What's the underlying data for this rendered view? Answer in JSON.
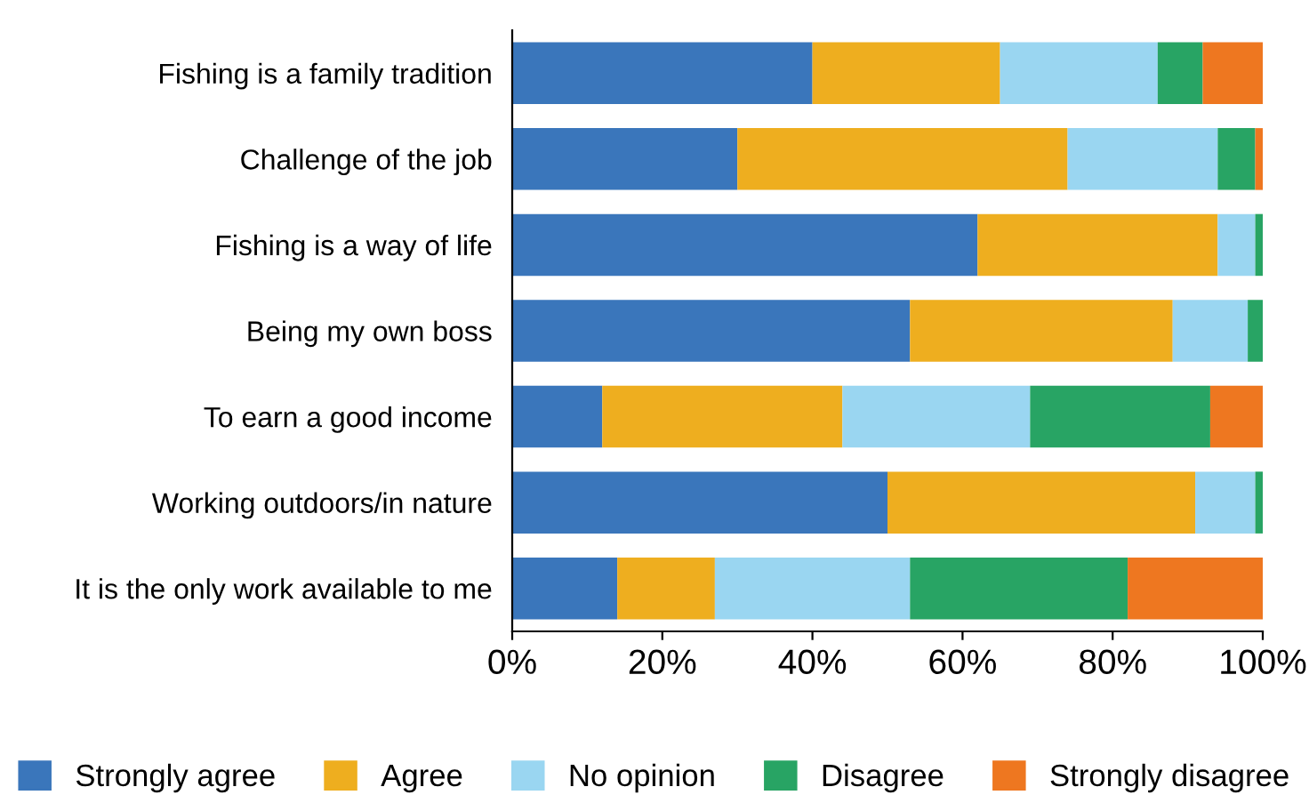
{
  "chart_data": {
    "type": "bar",
    "orientation": "horizontal",
    "stacked": true,
    "categories": [
      "Fishing is a family tradition",
      "Challenge of the job",
      "Fishing is a way of life",
      "Being my own boss",
      "To earn a good income",
      "Working outdoors/in nature",
      "It is the only work available to me"
    ],
    "series": [
      {
        "name": "Strongly agree",
        "color": "#3a76bb",
        "values": [
          40,
          30,
          62,
          53,
          12,
          50,
          14
        ]
      },
      {
        "name": "Agree",
        "color": "#eeae1f",
        "values": [
          25,
          44,
          32,
          35,
          32,
          41,
          13
        ]
      },
      {
        "name": "No opinion",
        "color": "#9ad6f1",
        "values": [
          21,
          20,
          5,
          10,
          25,
          8,
          26
        ]
      },
      {
        "name": "Disagree",
        "color": "#28a464",
        "values": [
          6,
          5,
          1,
          2,
          24,
          1,
          29
        ]
      },
      {
        "name": "Strongly disagree",
        "color": "#ee7720",
        "values": [
          8,
          1,
          0,
          0,
          7,
          0,
          18
        ]
      }
    ],
    "xlim": [
      0,
      100
    ],
    "xticks": [
      {
        "value": 0,
        "label": "0%"
      },
      {
        "value": 20,
        "label": "20%"
      },
      {
        "value": 40,
        "label": "40%"
      },
      {
        "value": 60,
        "label": "60%"
      },
      {
        "value": 80,
        "label": "80%"
      },
      {
        "value": 100,
        "label": "100%"
      }
    ],
    "grid": false,
    "legend": "bottom"
  }
}
